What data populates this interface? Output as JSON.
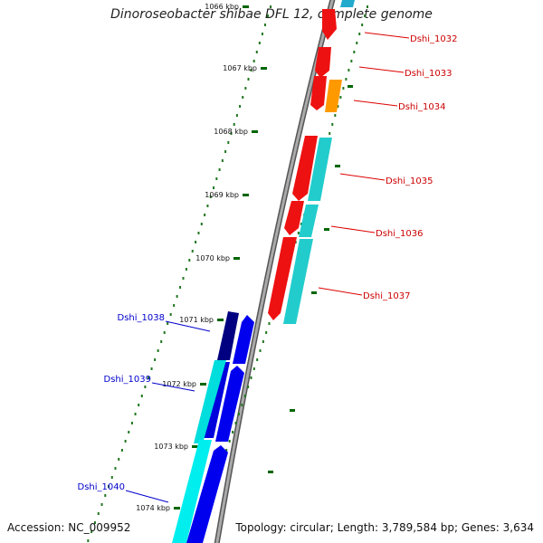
{
  "title": "Dinoroseobacter shibae DFL 12, complete genome",
  "accession": "Accession: NC_009952",
  "summary": "Topology: circular; Length: 3,789,584 bp; Genes: 3,634",
  "ticks": [
    "1066 kbp",
    "1067 kbp",
    "1068 kbp",
    "1069 kbp",
    "1070 kbp",
    "1071 kbp",
    "1072 kbp",
    "1073 kbp",
    "1074 kbp"
  ],
  "genes_forward": [
    {
      "label": "Dshi_1032",
      "color": "#ff0000",
      "cog_color": "#00cccc"
    },
    {
      "label": "Dshi_1033",
      "color": "#ee0000",
      "cog_color": ""
    },
    {
      "label": "Dshi_1034",
      "color": "#ee0000",
      "cog_color": "#ff9900"
    },
    {
      "label": "Dshi_1035",
      "color": "#ee0000",
      "cog_color": "#22cccc"
    },
    {
      "label": "Dshi_1036",
      "color": "#ee0000",
      "cog_color": "#22cccc"
    },
    {
      "label": "Dshi_1037",
      "color": "#ee0000",
      "cog_color": "#22cccc"
    }
  ],
  "genes_reverse": [
    {
      "label": "Dshi_1038",
      "color": "#0000ee",
      "cog_color": "#000080"
    },
    {
      "label": "Dshi_1039",
      "color": "#0000ee",
      "cog_color": "#00dddd"
    },
    {
      "label": "Dshi_1040",
      "color": "#0000ee",
      "cog_color": "#00eeee"
    }
  ],
  "colors": {
    "forward_label": "#cc0000",
    "reverse_label": "#0000cc",
    "backbone": "#888888",
    "tick": "#227722",
    "kbp_tick": "#006600"
  }
}
